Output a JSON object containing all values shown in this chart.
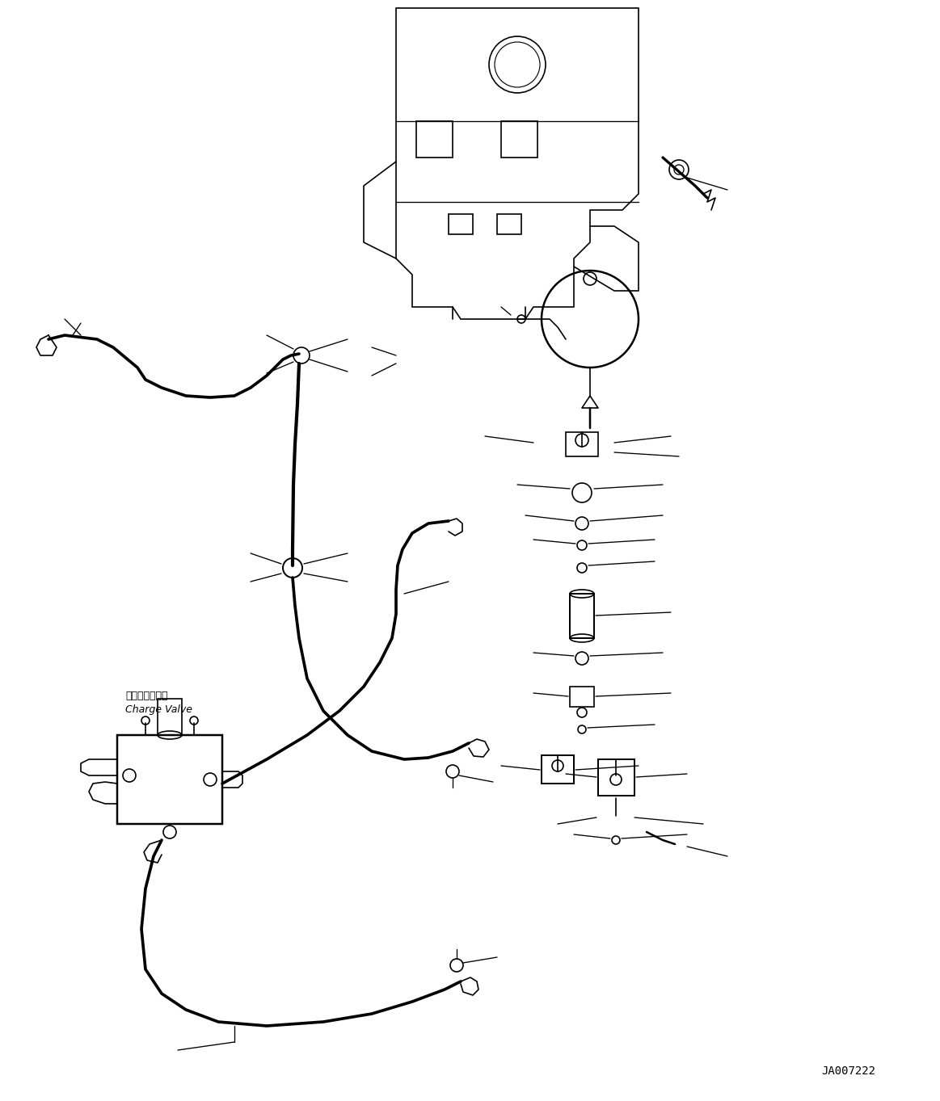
{
  "background_color": "#ffffff",
  "line_color": "#000000",
  "figure_id": "JA007222",
  "label_charge_valve_jp": "チャージバルブ",
  "label_charge_valve_en": "Charge Valve",
  "fig_width": 11.63,
  "fig_height": 13.63,
  "dpi": 100
}
